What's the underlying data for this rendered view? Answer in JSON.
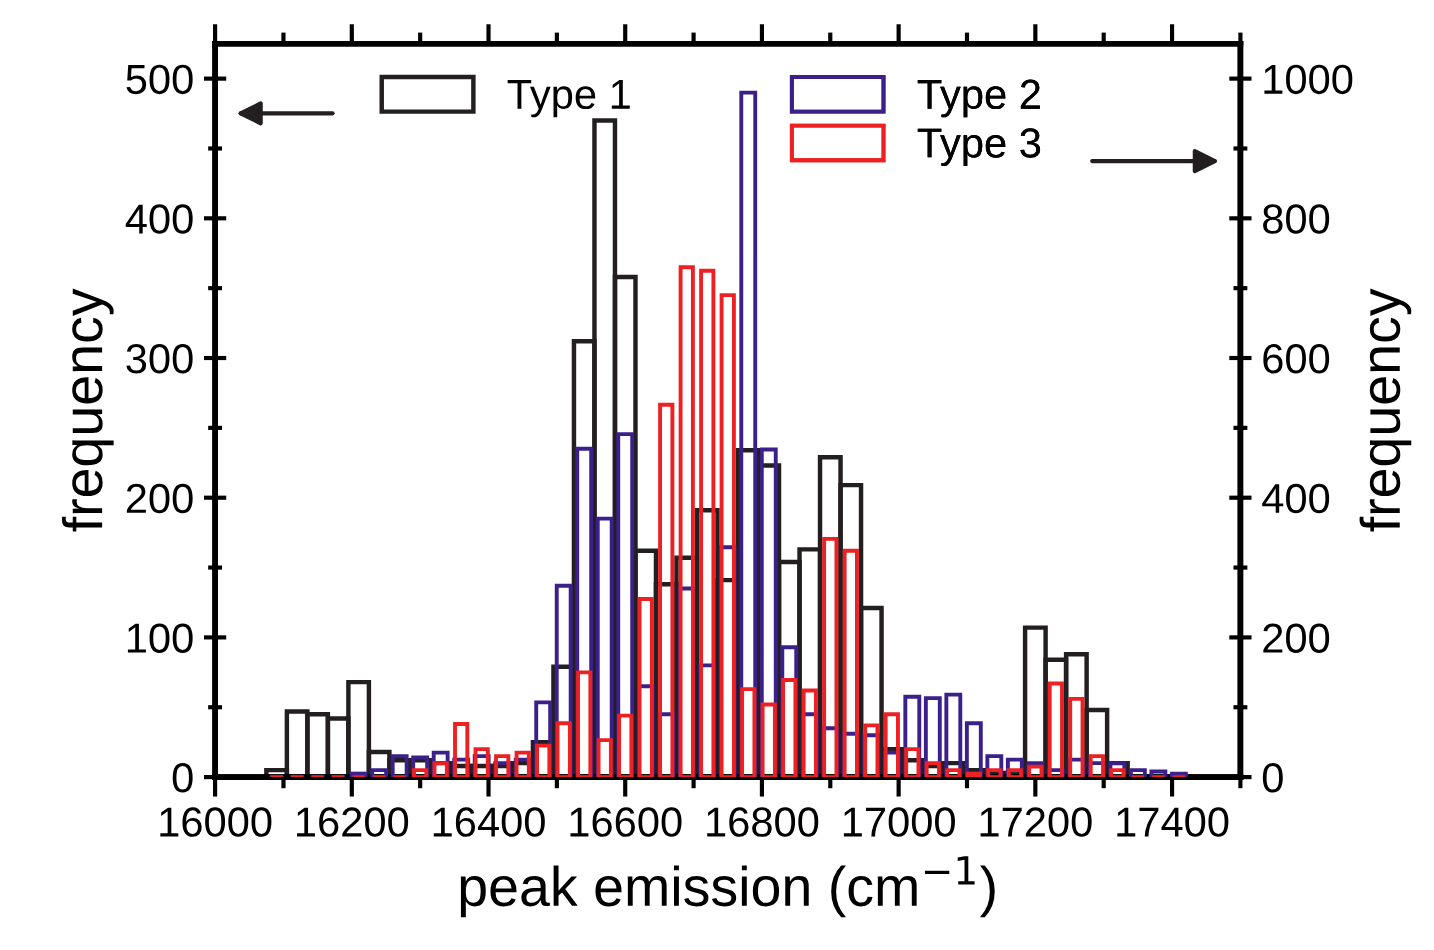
{
  "chart_data": {
    "type": "histogram",
    "xlabel": "peak emission (cm$^{−1}$)",
    "ylabel": "frequency",
    "y2label": "frequency",
    "bins": [
      16075,
      16105,
      16135,
      16165,
      16195,
      16225,
      16255,
      16285,
      16315,
      16345,
      16375,
      16405,
      16435,
      16465,
      16495,
      16525,
      16555,
      16585,
      16615,
      16645,
      16675,
      16705,
      16735,
      16765,
      16795,
      16825,
      16855,
      16885,
      16915,
      16945,
      16975,
      17005,
      17035,
      17065,
      17095,
      17125,
      17155,
      17185,
      17215,
      17245,
      17275,
      17305,
      17335,
      17365,
      17395,
      17425
    ],
    "series": [
      {
        "name": "Type 1",
        "color": "#231f20",
        "values": [
          5,
          47,
          45,
          42,
          68,
          18,
          12,
          12,
          10,
          8,
          8,
          8,
          10,
          25,
          79,
          312,
          470,
          358,
          162,
          138,
          157,
          191,
          141,
          234,
          223,
          154,
          163,
          229,
          209,
          121,
          20,
          12,
          8,
          10,
          5,
          3,
          2,
          107,
          84,
          88,
          48,
          10,
          0,
          0,
          0
        ]
      },
      {
        "name": "Type 2",
        "color": "#3b1f8a",
        "axis": "y2",
        "values": [
          0,
          0,
          0,
          0,
          5,
          10,
          30,
          28,
          35,
          25,
          30,
          20,
          25,
          107,
          274,
          470,
          370,
          491,
          130,
          90,
          270,
          160,
          329,
          980,
          469,
          186,
          90,
          70,
          62,
          60,
          35,
          115,
          113,
          118,
          77,
          30,
          25,
          20,
          10,
          25,
          20,
          20,
          10,
          8,
          5
        ]
      },
      {
        "name": "Type 3",
        "color": "#ed2024",
        "axis": "y2",
        "values": [
          0,
          0,
          0,
          0,
          0,
          0,
          0,
          10,
          20,
          76,
          40,
          30,
          35,
          45,
          77,
          150,
          53,
          88,
          255,
          533,
          730,
          725,
          690,
          126,
          104,
          139,
          124,
          341,
          324,
          74,
          90,
          40,
          20,
          10,
          5,
          10,
          10,
          15,
          134,
          112,
          30,
          10,
          0,
          0,
          0
        ]
      }
    ],
    "xlim": [
      16000,
      17500
    ],
    "xticks": [
      16000,
      16200,
      16400,
      16600,
      16800,
      17000,
      17200,
      17400
    ],
    "ylim": [
      0,
      525
    ],
    "yticks": [
      0,
      100,
      200,
      300,
      400,
      500
    ],
    "y2lim": [
      0,
      1050
    ],
    "y2ticks": [
      0,
      200,
      400,
      600,
      800,
      1000
    ],
    "legend": "top"
  }
}
